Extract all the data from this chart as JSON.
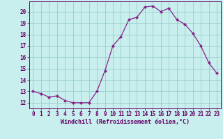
{
  "x": [
    0,
    1,
    2,
    3,
    4,
    5,
    6,
    7,
    8,
    9,
    10,
    11,
    12,
    13,
    14,
    15,
    16,
    17,
    18,
    19,
    20,
    21,
    22,
    23
  ],
  "y": [
    13.0,
    12.8,
    12.5,
    12.6,
    12.2,
    12.0,
    12.0,
    12.0,
    13.0,
    14.8,
    17.0,
    17.8,
    19.3,
    19.5,
    20.4,
    20.5,
    20.0,
    20.3,
    19.3,
    18.9,
    18.1,
    17.0,
    15.5,
    14.6
  ],
  "line_color": "#882288",
  "marker": "D",
  "marker_size": 2.0,
  "line_width": 0.9,
  "bg_color": "#c8eeee",
  "grid_color": "#99cccc",
  "xlabel": "Windchill (Refroidissement éolien,°C)",
  "xlabel_color": "#660066",
  "xlabel_fontsize": 6.0,
  "xtick_labels": [
    "0",
    "1",
    "2",
    "3",
    "4",
    "5",
    "6",
    "7",
    "8",
    "9",
    "10",
    "11",
    "12",
    "13",
    "14",
    "15",
    "16",
    "17",
    "18",
    "19",
    "20",
    "21",
    "22",
    "23"
  ],
  "ytick_labels": [
    "12",
    "13",
    "14",
    "15",
    "16",
    "17",
    "18",
    "19",
    "20"
  ],
  "ylim": [
    11.5,
    20.9
  ],
  "xlim": [
    -0.5,
    23.5
  ],
  "yticks": [
    12,
    13,
    14,
    15,
    16,
    17,
    18,
    19,
    20
  ],
  "tick_color": "#660066",
  "tick_fontsize": 5.5,
  "axis_color": "#660066",
  "spine_color": "#660066"
}
